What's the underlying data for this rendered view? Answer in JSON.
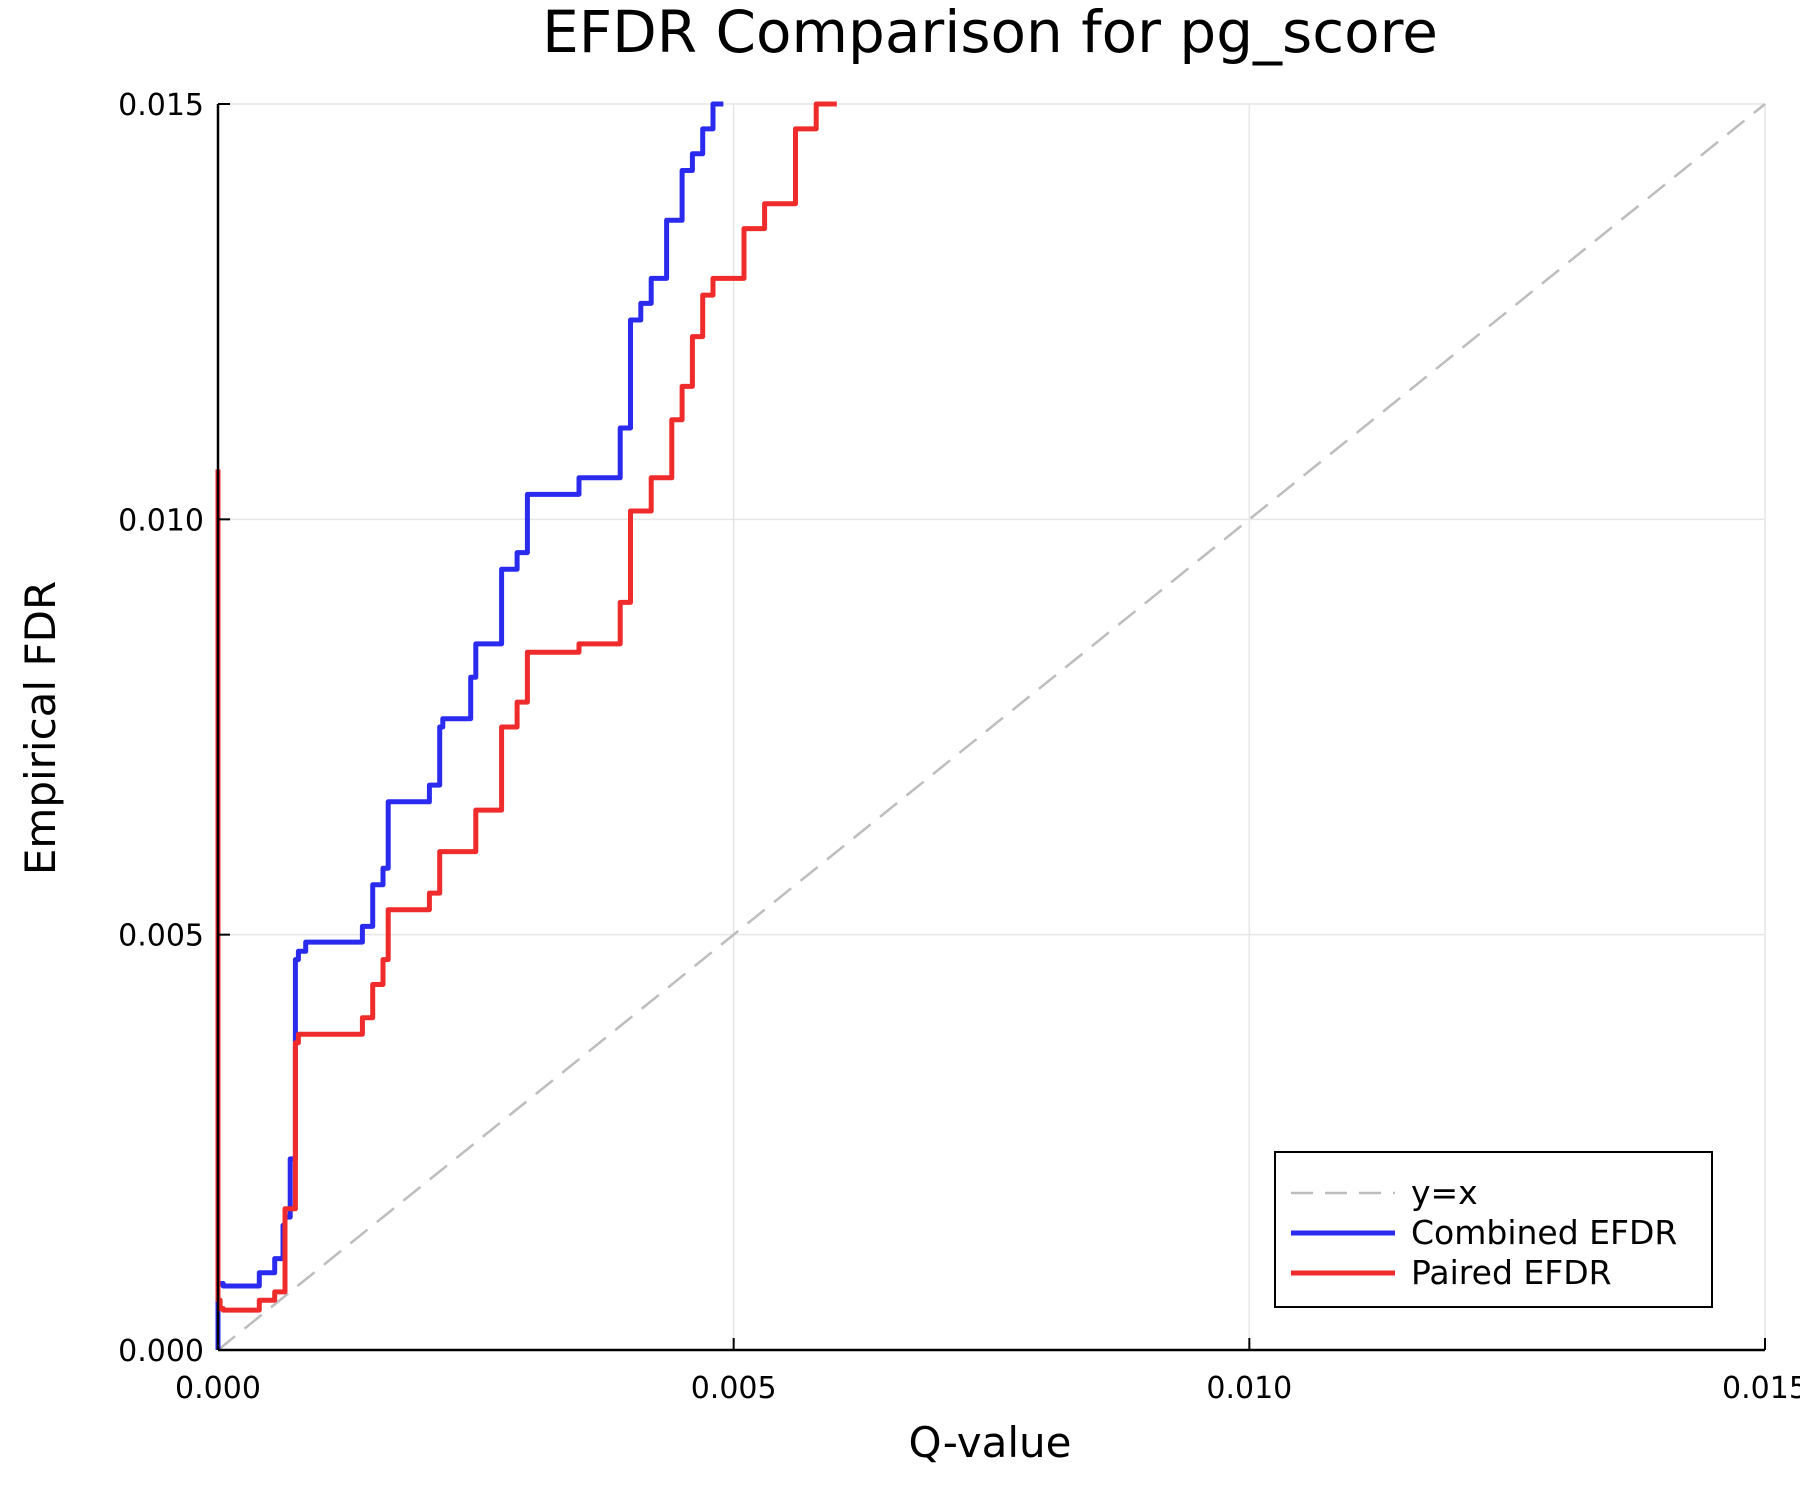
{
  "chart_data": {
    "type": "line",
    "title": "EFDR Comparison for pg_score",
    "xlabel": "Q-value",
    "ylabel": "Empirical FDR",
    "xlim": [
      0,
      0.015
    ],
    "ylim": [
      0,
      0.015
    ],
    "x_ticks": [
      "0.000",
      "0.005",
      "0.010",
      "0.015"
    ],
    "y_ticks": [
      "0.000",
      "0.005",
      "0.010",
      "0.015"
    ],
    "grid": true,
    "legend_position": "bottom-right",
    "series": [
      {
        "name": "y=x",
        "color": "#bdbdbd",
        "style": "dashed",
        "x": [
          0,
          0.015
        ],
        "y": [
          0,
          0.015
        ]
      },
      {
        "name": "Combined EFDR",
        "color": "#2b2bf0",
        "style": "solid",
        "x": [
          0,
          0,
          5e-05,
          5e-05,
          0.0004,
          0.0004,
          0.00055,
          0.00055,
          0.00063,
          0.00063,
          0.00065,
          0.00065,
          0.0007,
          0.0007,
          0.00075,
          0.00075,
          0.00078,
          0.00078,
          0.00085,
          0.00085,
          0.0014,
          0.0014,
          0.0015,
          0.0015,
          0.0016,
          0.0016,
          0.00165,
          0.00165,
          0.00205,
          0.00205,
          0.00215,
          0.00215,
          0.00218,
          0.00218,
          0.00245,
          0.00245,
          0.0025,
          0.0025,
          0.00275,
          0.00275,
          0.0029,
          0.0029,
          0.003,
          0.003,
          0.0031,
          0.0031,
          0.0035,
          0.0035,
          0.0039,
          0.0039,
          0.004,
          0.004,
          0.0041,
          0.0041,
          0.0042,
          0.0042,
          0.00435,
          0.00435,
          0.0045,
          0.0045,
          0.0046,
          0.0046,
          0.0047,
          0.0047,
          0.0048,
          0.0048,
          0.0049
        ],
        "y": [
          0,
          0.0008,
          0.0008,
          0.00077,
          0.00077,
          0.00093,
          0.00093,
          0.0011,
          0.0011,
          0.0015,
          0.0015,
          0.0016,
          0.0016,
          0.0023,
          0.0023,
          0.0047,
          0.0047,
          0.0048,
          0.0048,
          0.00491,
          0.00491,
          0.0051,
          0.0051,
          0.0056,
          0.0056,
          0.0058,
          0.0058,
          0.0066,
          0.0066,
          0.0068,
          0.0068,
          0.0075,
          0.0075,
          0.0076,
          0.0076,
          0.0081,
          0.0081,
          0.0085,
          0.0085,
          0.0094,
          0.0094,
          0.0096,
          0.0096,
          0.0103,
          0.0103,
          0.0103,
          0.0103,
          0.0105,
          0.0105,
          0.0111,
          0.0111,
          0.0124,
          0.0124,
          0.0126,
          0.0126,
          0.0129,
          0.0129,
          0.0136,
          0.0136,
          0.0142,
          0.0142,
          0.0144,
          0.0144,
          0.0147,
          0.0147,
          0.015,
          0.015
        ]
      },
      {
        "name": "Paired EFDR",
        "color": "#f02b2b",
        "style": "solid",
        "x": [
          0,
          0,
          2e-05,
          2e-05,
          5e-05,
          5e-05,
          0.0004,
          0.0004,
          0.00055,
          0.00055,
          0.00065,
          0.00065,
          0.00075,
          0.00075,
          0.00078,
          0.00078,
          0.0014,
          0.0014,
          0.0015,
          0.0015,
          0.0016,
          0.0016,
          0.00165,
          0.00165,
          0.00205,
          0.00205,
          0.00215,
          0.00215,
          0.0025,
          0.0025,
          0.00275,
          0.00275,
          0.0029,
          0.0029,
          0.003,
          0.003,
          0.0031,
          0.0031,
          0.0035,
          0.0035,
          0.0039,
          0.0039,
          0.004,
          0.004,
          0.00405,
          0.00405,
          0.0042,
          0.0042,
          0.0044,
          0.0044,
          0.0045,
          0.0045,
          0.0046,
          0.0046,
          0.0047,
          0.0047,
          0.0048,
          0.0048,
          0.0051,
          0.0051,
          0.0053,
          0.0053,
          0.0056,
          0.0056,
          0.0058,
          0.0058,
          0.006
        ],
        "y": [
          0.0106,
          0.0006,
          0.0006,
          0.0005,
          0.0005,
          0.00048,
          0.00048,
          0.0006,
          0.0006,
          0.0007,
          0.0007,
          0.0017,
          0.0017,
          0.0037,
          0.0037,
          0.0038,
          0.0038,
          0.004,
          0.004,
          0.0044,
          0.0044,
          0.0047,
          0.0047,
          0.0053,
          0.0053,
          0.0055,
          0.0055,
          0.006,
          0.006,
          0.0065,
          0.0065,
          0.0075,
          0.0075,
          0.0078,
          0.0078,
          0.0084,
          0.0084,
          0.0084,
          0.0084,
          0.0085,
          0.0085,
          0.009,
          0.009,
          0.0101,
          0.0101,
          0.0101,
          0.0101,
          0.0105,
          0.0105,
          0.0112,
          0.0112,
          0.0116,
          0.0116,
          0.0122,
          0.0122,
          0.0127,
          0.0127,
          0.0129,
          0.0129,
          0.0135,
          0.0135,
          0.0138,
          0.0138,
          0.0147,
          0.0147,
          0.015,
          0.015
        ]
      }
    ]
  }
}
